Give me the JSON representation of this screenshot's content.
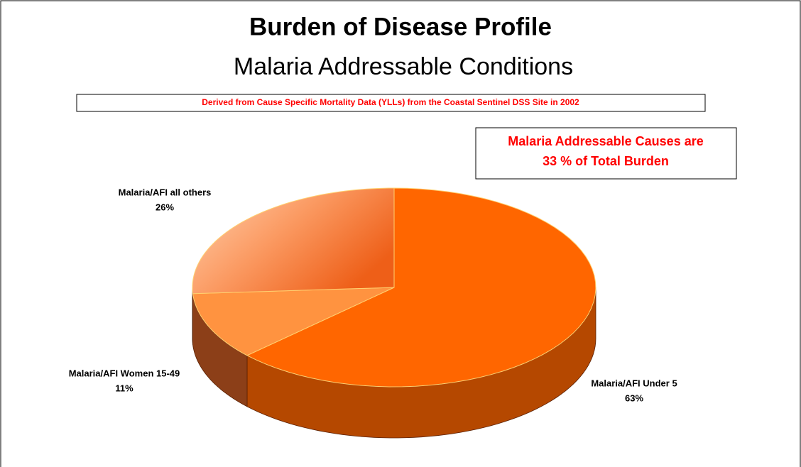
{
  "chart_data": {
    "type": "pie",
    "title": "Burden of Disease Profile",
    "subtitle": "Malaria Addressable Conditions",
    "note": "Derived from Cause Specific Mortality Data (YLLs)  from the Coastal Sentinel DSS Site in 2002",
    "annotation": [
      "Malaria Addressable Causes are",
      "33 % of Total Burden"
    ],
    "categories": [
      "Malaria/AFI Under 5",
      "Malaria/AFI Women 15-49",
      "Malaria/AFI all others"
    ],
    "values": [
      63,
      11,
      26
    ],
    "value_labels": [
      "63%",
      "11%",
      "26%"
    ],
    "colors": [
      "#ff6600",
      "#ff9340",
      "#f98a4e"
    ],
    "side_colors": [
      "#b54800",
      "#8c3f18",
      "#a0461a"
    ]
  }
}
